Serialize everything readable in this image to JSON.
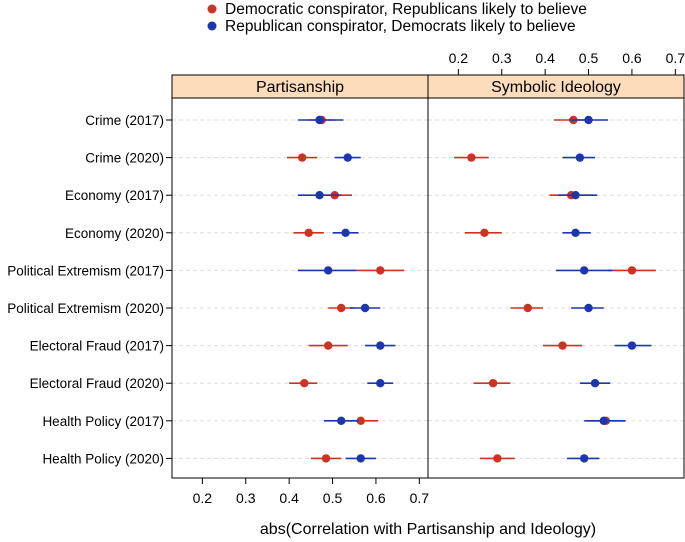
{
  "chart_data": {
    "type": "dot-interval",
    "xlabel": "abs(Correlation with Partisanship and Ideology)",
    "xlim": [
      0.13,
      0.72
    ],
    "xticks": [
      "0.2",
      "0.3",
      "0.4",
      "0.5",
      "0.6",
      "0.7"
    ],
    "xtick_values": [
      0.2,
      0.3,
      0.4,
      0.5,
      0.6,
      0.7
    ],
    "grid": "horizontal dashed",
    "legend_position": "top",
    "panels": [
      "Partisanship",
      "Symbolic Ideology"
    ],
    "categories": [
      "Crime (2017)",
      "Crime (2020)",
      "Economy (2017)",
      "Economy (2020)",
      "Political Extremism (2017)",
      "Political Extremism (2020)",
      "Electoral Fraud (2017)",
      "Electoral Fraud (2020)",
      "Health Policy (2017)",
      "Health Policy (2020)"
    ],
    "series": [
      {
        "name": "Democratic conspirator, Republicans likely to believe",
        "color": "#cc3322",
        "estimate": {
          "Partisanship": [
            0.475,
            0.43,
            0.505,
            0.445,
            0.61,
            0.52,
            0.49,
            0.435,
            0.565,
            0.485
          ],
          "Symbolic Ideology": [
            0.465,
            0.23,
            0.46,
            0.26,
            0.6,
            0.36,
            0.44,
            0.28,
            0.54,
            0.29
          ]
        },
        "lower": {
          "Partisanship": [
            0.445,
            0.395,
            0.465,
            0.41,
            0.555,
            0.49,
            0.445,
            0.4,
            0.525,
            0.45
          ],
          "Symbolic Ideology": [
            0.42,
            0.19,
            0.41,
            0.215,
            0.545,
            0.32,
            0.395,
            0.235,
            0.5,
            0.25
          ]
        },
        "upper": {
          "Partisanship": [
            0.505,
            0.465,
            0.545,
            0.48,
            0.665,
            0.55,
            0.535,
            0.465,
            0.605,
            0.52
          ],
          "Symbolic Ideology": [
            0.51,
            0.27,
            0.51,
            0.3,
            0.655,
            0.395,
            0.485,
            0.32,
            0.585,
            0.33
          ]
        }
      },
      {
        "name": "Republican conspirator, Democrats likely to believe",
        "color": "#1c36b0",
        "estimate": {
          "Partisanship": [
            0.47,
            0.535,
            0.47,
            0.53,
            0.49,
            0.575,
            0.61,
            0.61,
            0.52,
            0.565
          ],
          "Symbolic Ideology": [
            0.5,
            0.48,
            0.47,
            0.47,
            0.49,
            0.5,
            0.6,
            0.515,
            0.535,
            0.49
          ]
        },
        "lower": {
          "Partisanship": [
            0.42,
            0.505,
            0.42,
            0.5,
            0.42,
            0.54,
            0.575,
            0.58,
            0.48,
            0.53
          ],
          "Symbolic Ideology": [
            0.455,
            0.44,
            0.43,
            0.44,
            0.425,
            0.46,
            0.56,
            0.48,
            0.49,
            0.45
          ]
        },
        "upper": {
          "Partisanship": [
            0.525,
            0.565,
            0.52,
            0.56,
            0.555,
            0.61,
            0.645,
            0.64,
            0.56,
            0.6
          ],
          "Symbolic Ideology": [
            0.545,
            0.515,
            0.52,
            0.505,
            0.555,
            0.535,
            0.645,
            0.55,
            0.585,
            0.525
          ]
        }
      }
    ]
  }
}
